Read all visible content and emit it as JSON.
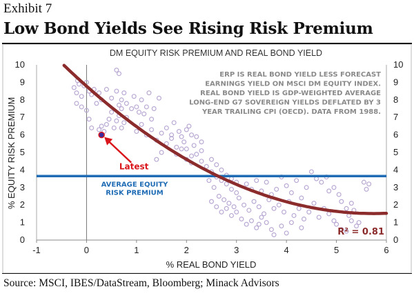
{
  "header": {
    "exhibit": "Exhibit 7",
    "title": "Low Bond Yields See Rising Risk Premium"
  },
  "footer": {
    "source": "Source: MSCI, IBES/DataStream, Bloomberg; Minack Advisors"
  },
  "chart_data": {
    "type": "scatter",
    "title": "DM EQUITY RISK PREMIUM AND REAL BOND YIELD",
    "xlabel": "% REAL BOND YIELD",
    "ylabel": "% EQUITY RISK PREMIUM",
    "xlim": [
      -1,
      6
    ],
    "ylim": [
      0,
      10
    ],
    "x_ticks": [
      "-1",
      "0",
      "1",
      "2",
      "3",
      "4",
      "5",
      "6"
    ],
    "y_ticks": [
      "0",
      "1",
      "2",
      "3",
      "4",
      "5",
      "6",
      "7",
      "8",
      "9",
      "10"
    ],
    "grid": false,
    "note_lines": [
      "ERP IS REAL BOND YIELD LESS FORECAST",
      "EARNINGS YIELD ON MSCI DM EQUITY INDEX.",
      "REAL BOND YIELD IS GDP-WEIGHTED AVERAGE",
      "LONG-END G7 SOVEREIGN YIELDS DEFLATED BY 3",
      "YEAR TRAILING CPI (OECD).   DATA FROM 1988."
    ],
    "average_line": {
      "value": 3.65,
      "label_lines": [
        "AVERAGE EQUITY",
        "RISK PREMIUM"
      ]
    },
    "latest": {
      "x": 0.3,
      "y": 6.0,
      "label": "Latest"
    },
    "fit": {
      "r2_label": "R² = 0.81"
    },
    "colors": {
      "points": "#b9a9d3",
      "fit": "#8b2b2b",
      "average": "#1f6cb5",
      "latest": "#d9161b",
      "note": "#8a8a8a"
    },
    "points": [
      [
        -0.25,
        8.7
      ],
      [
        -0.2,
        8.4
      ],
      [
        -0.18,
        9.1
      ],
      [
        -0.15,
        8.9
      ],
      [
        -0.1,
        8.2
      ],
      [
        -0.05,
        8.8
      ],
      [
        0.0,
        9.0
      ],
      [
        0.05,
        8.5
      ],
      [
        0.1,
        8.3
      ],
      [
        0.15,
        8.6
      ],
      [
        0.2,
        7.8
      ],
      [
        0.25,
        8.4
      ],
      [
        0.3,
        8.0
      ],
      [
        -0.2,
        7.8
      ],
      [
        -0.1,
        7.6
      ],
      [
        0.0,
        7.4
      ],
      [
        0.05,
        6.9
      ],
      [
        0.1,
        6.4
      ],
      [
        0.25,
        6.3
      ],
      [
        0.3,
        6.5
      ],
      [
        0.35,
        6.2
      ],
      [
        0.4,
        6.6
      ],
      [
        0.45,
        6.9
      ],
      [
        0.5,
        7.3
      ],
      [
        0.55,
        6.4
      ],
      [
        0.6,
        6.8
      ],
      [
        0.65,
        7.1
      ],
      [
        0.7,
        6.4
      ],
      [
        0.75,
        6.7
      ],
      [
        0.8,
        7.0
      ],
      [
        0.7,
        7.5
      ],
      [
        0.4,
        8.6
      ],
      [
        0.5,
        8.1
      ],
      [
        0.6,
        8.5
      ],
      [
        0.65,
        7.7
      ],
      [
        0.7,
        8.0
      ],
      [
        0.75,
        8.4
      ],
      [
        0.8,
        7.8
      ],
      [
        0.9,
        7.5
      ],
      [
        0.95,
        8.2
      ],
      [
        1.0,
        7.6
      ],
      [
        1.05,
        7.3
      ],
      [
        1.1,
        8.0
      ],
      [
        1.15,
        7.2
      ],
      [
        1.2,
        7.6
      ],
      [
        1.25,
        8.4
      ],
      [
        1.35,
        7.5
      ],
      [
        1.45,
        8.1
      ],
      [
        1.3,
        6.9
      ],
      [
        0.6,
        9.7
      ],
      [
        0.65,
        9.5
      ],
      [
        1.0,
        6.2
      ],
      [
        1.1,
        6.6
      ],
      [
        1.2,
        6.0
      ],
      [
        1.3,
        6.3
      ],
      [
        1.4,
        5.7
      ],
      [
        1.5,
        6.1
      ],
      [
        1.6,
        5.5
      ],
      [
        1.7,
        5.8
      ],
      [
        1.8,
        5.3
      ],
      [
        1.9,
        5.9
      ],
      [
        1.95,
        5.6
      ],
      [
        2.0,
        6.3
      ],
      [
        2.05,
        6.5
      ],
      [
        2.1,
        6.0
      ],
      [
        2.15,
        5.4
      ],
      [
        2.2,
        5.9
      ],
      [
        2.3,
        5.6
      ],
      [
        1.6,
        6.4
      ],
      [
        1.7,
        6.0
      ],
      [
        1.75,
        6.7
      ],
      [
        1.85,
        6.2
      ],
      [
        2.0,
        5.2
      ],
      [
        2.1,
        4.8
      ],
      [
        1.5,
        5.0
      ],
      [
        1.4,
        4.6
      ],
      [
        1.8,
        4.9
      ],
      [
        1.9,
        5.2
      ],
      [
        2.0,
        4.6
      ],
      [
        2.1,
        4.4
      ],
      [
        2.2,
        4.9
      ],
      [
        2.3,
        5.1
      ],
      [
        2.3,
        4.5
      ],
      [
        2.4,
        4.2
      ],
      [
        2.5,
        4.6
      ],
      [
        2.5,
        3.9
      ],
      [
        2.6,
        4.3
      ],
      [
        2.6,
        3.6
      ],
      [
        2.7,
        3.4
      ],
      [
        2.7,
        4.0
      ],
      [
        2.8,
        3.7
      ],
      [
        2.8,
        3.2
      ],
      [
        2.9,
        3.5
      ],
      [
        2.9,
        2.9
      ],
      [
        3.0,
        3.3
      ],
      [
        3.0,
        2.7
      ],
      [
        2.45,
        3.4
      ],
      [
        2.55,
        3.0
      ],
      [
        2.65,
        2.5
      ],
      [
        2.75,
        2.3
      ],
      [
        2.85,
        2.1
      ],
      [
        2.95,
        1.9
      ],
      [
        3.05,
        2.4
      ],
      [
        3.15,
        2.0
      ],
      [
        3.25,
        1.7
      ],
      [
        3.35,
        2.2
      ],
      [
        3.45,
        1.9
      ],
      [
        3.55,
        1.5
      ],
      [
        3.65,
        2.3
      ],
      [
        3.75,
        1.8
      ],
      [
        2.5,
        2.2
      ],
      [
        2.6,
        1.9
      ],
      [
        2.7,
        1.6
      ],
      [
        2.8,
        1.8
      ],
      [
        2.9,
        1.4
      ],
      [
        3.0,
        1.6
      ],
      [
        3.1,
        1.2
      ],
      [
        3.2,
        0.9
      ],
      [
        3.3,
        1.1
      ],
      [
        3.4,
        0.7
      ],
      [
        3.45,
        0.9
      ],
      [
        3.5,
        1.3
      ],
      [
        3.6,
        1.0
      ],
      [
        3.7,
        0.6
      ],
      [
        3.2,
        3.2
      ],
      [
        3.3,
        2.9
      ],
      [
        3.4,
        3.4
      ],
      [
        3.5,
        2.8
      ],
      [
        3.6,
        3.3
      ],
      [
        3.7,
        2.6
      ],
      [
        3.8,
        2.9
      ],
      [
        3.9,
        3.6
      ],
      [
        4.0,
        3.1
      ],
      [
        4.1,
        2.7
      ],
      [
        4.2,
        3.4
      ],
      [
        4.3,
        2.4
      ],
      [
        4.4,
        3.0
      ],
      [
        3.85,
        2.0
      ],
      [
        3.95,
        1.6
      ],
      [
        4.05,
        2.2
      ],
      [
        4.15,
        1.4
      ],
      [
        4.25,
        1.8
      ],
      [
        4.35,
        1.2
      ],
      [
        4.45,
        1.6
      ],
      [
        4.55,
        2.1
      ],
      [
        4.65,
        1.3
      ],
      [
        4.75,
        1.8
      ],
      [
        4.85,
        1.5
      ],
      [
        4.95,
        1.1
      ],
      [
        3.9,
        0.8
      ],
      [
        4.0,
        0.4
      ],
      [
        3.75,
        0.3
      ],
      [
        4.1,
        1.0
      ],
      [
        4.3,
        0.7
      ],
      [
        4.5,
        3.9
      ],
      [
        4.6,
        3.5
      ],
      [
        4.7,
        3.3
      ],
      [
        4.8,
        3.6
      ],
      [
        4.85,
        2.8
      ],
      [
        4.95,
        3.0
      ],
      [
        5.05,
        2.6
      ],
      [
        5.1,
        2.2
      ],
      [
        5.2,
        1.8
      ],
      [
        5.25,
        1.4
      ],
      [
        5.3,
        2.1
      ],
      [
        5.35,
        1.7
      ],
      [
        5.45,
        1.0
      ],
      [
        5.55,
        3.3
      ],
      [
        5.6,
        2.9
      ],
      [
        5.65,
        3.2
      ],
      [
        5.0,
        0.9
      ],
      [
        5.1,
        0.6
      ],
      [
        5.2,
        0.5
      ],
      [
        5.3,
        1.1
      ],
      [
        5.4,
        0.8
      ]
    ]
  }
}
